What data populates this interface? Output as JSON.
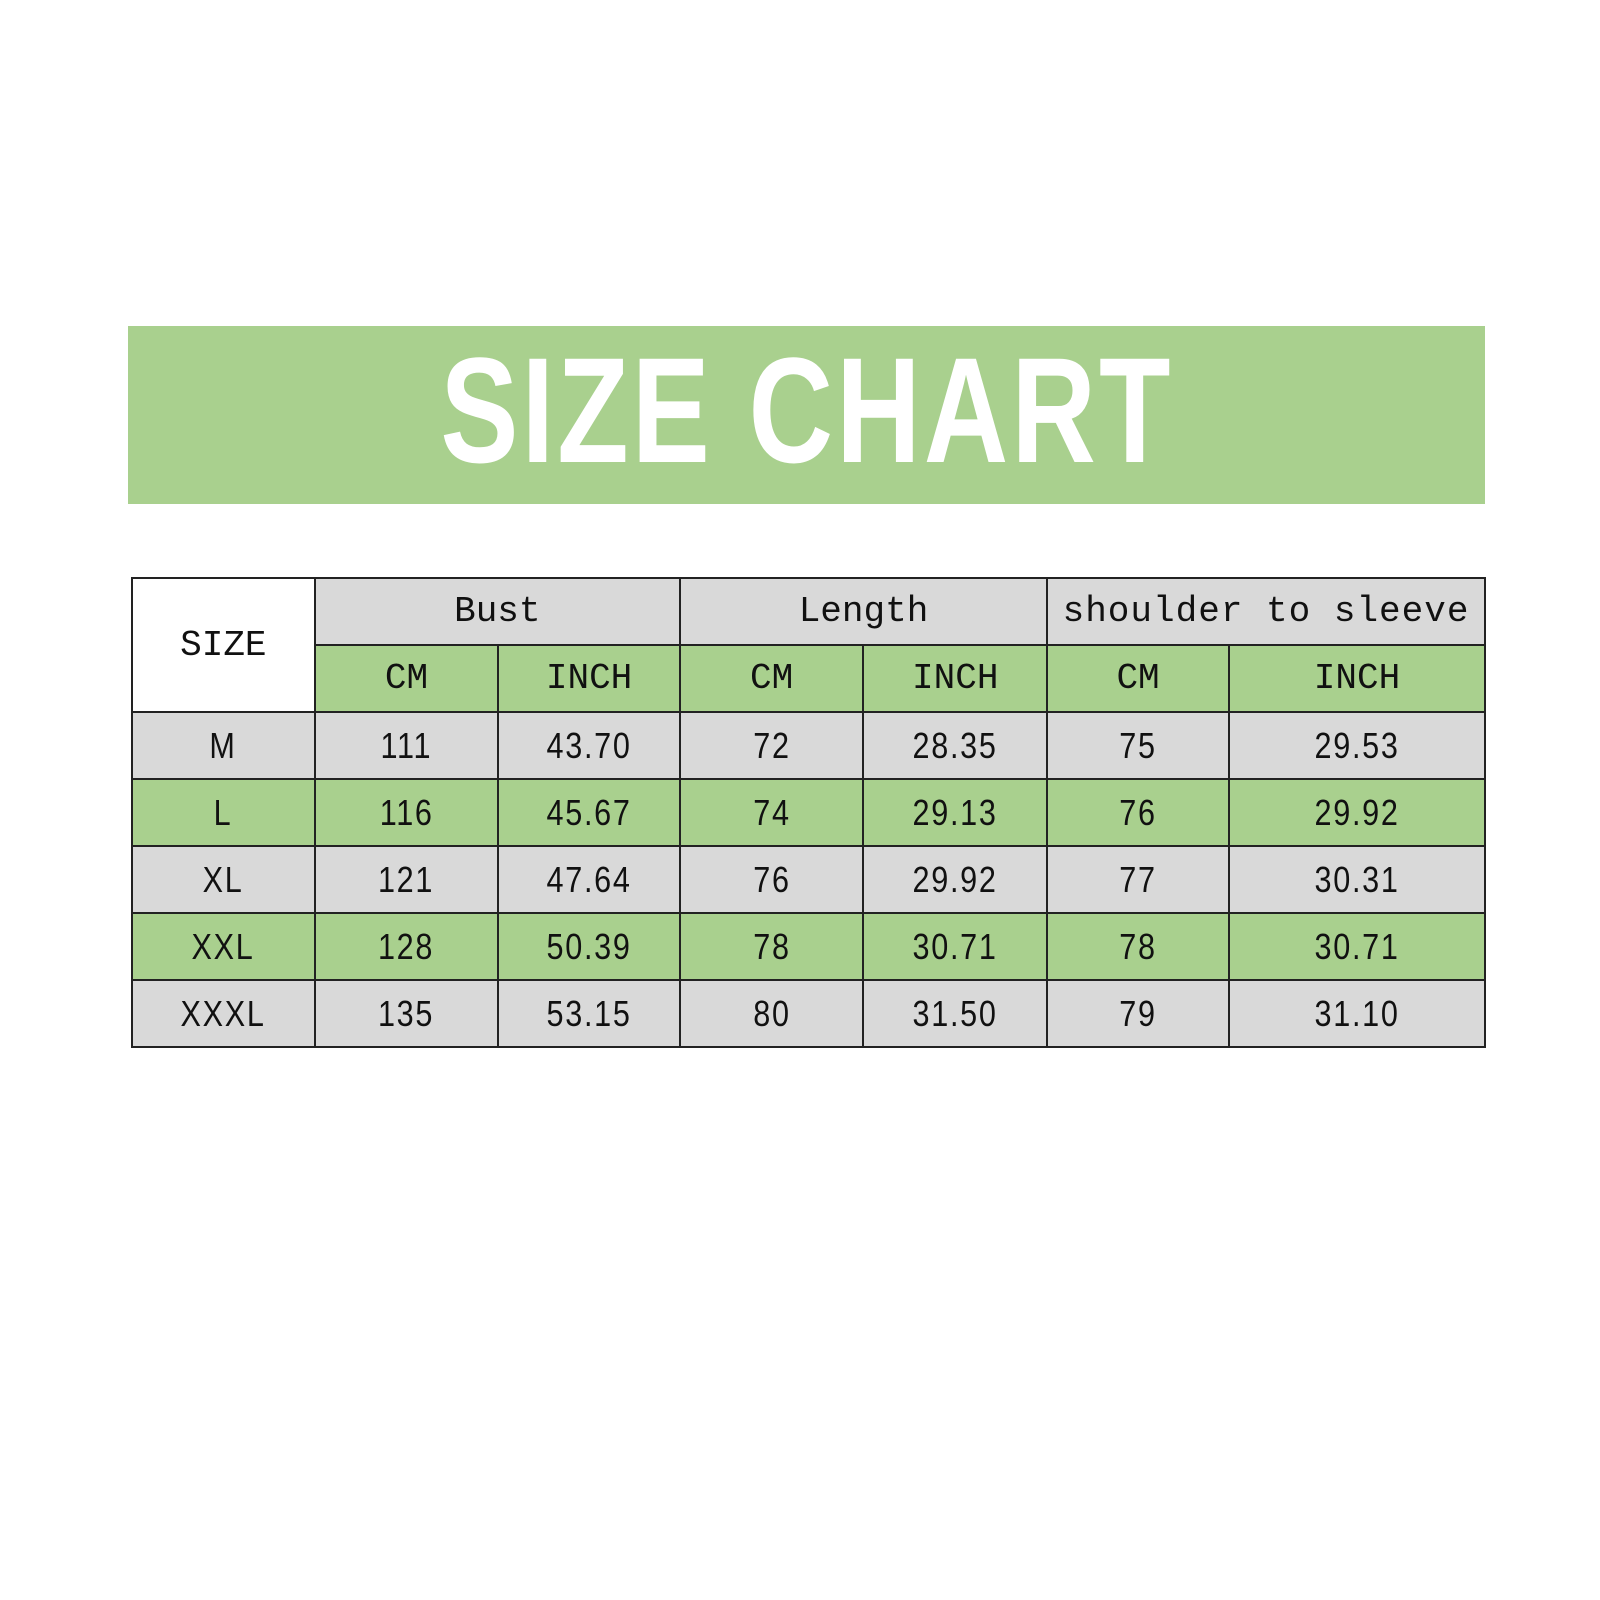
{
  "title": "SIZE CHART",
  "colors": {
    "green": "#a9d08e",
    "gray": "#d9d9d9",
    "title_text": "#ffffff"
  },
  "table": {
    "size_header": "SIZE",
    "groups": [
      "Bust",
      "Length",
      "shoulder to sleeve"
    ],
    "units": [
      "CM",
      "INCH",
      "CM",
      "INCH",
      "CM",
      "INCH"
    ],
    "rows": [
      {
        "size": "M",
        "values": [
          "111",
          "43.70",
          "72",
          "28.35",
          "75",
          "29.53"
        ]
      },
      {
        "size": "L",
        "values": [
          "116",
          "45.67",
          "74",
          "29.13",
          "76",
          "29.92"
        ]
      },
      {
        "size": "XL",
        "values": [
          "121",
          "47.64",
          "76",
          "29.92",
          "77",
          "30.31"
        ]
      },
      {
        "size": "XXL",
        "values": [
          "128",
          "50.39",
          "78",
          "30.71",
          "78",
          "30.71"
        ]
      },
      {
        "size": "XXXL",
        "values": [
          "135",
          "53.15",
          "80",
          "31.50",
          "79",
          "31.10"
        ]
      }
    ]
  }
}
